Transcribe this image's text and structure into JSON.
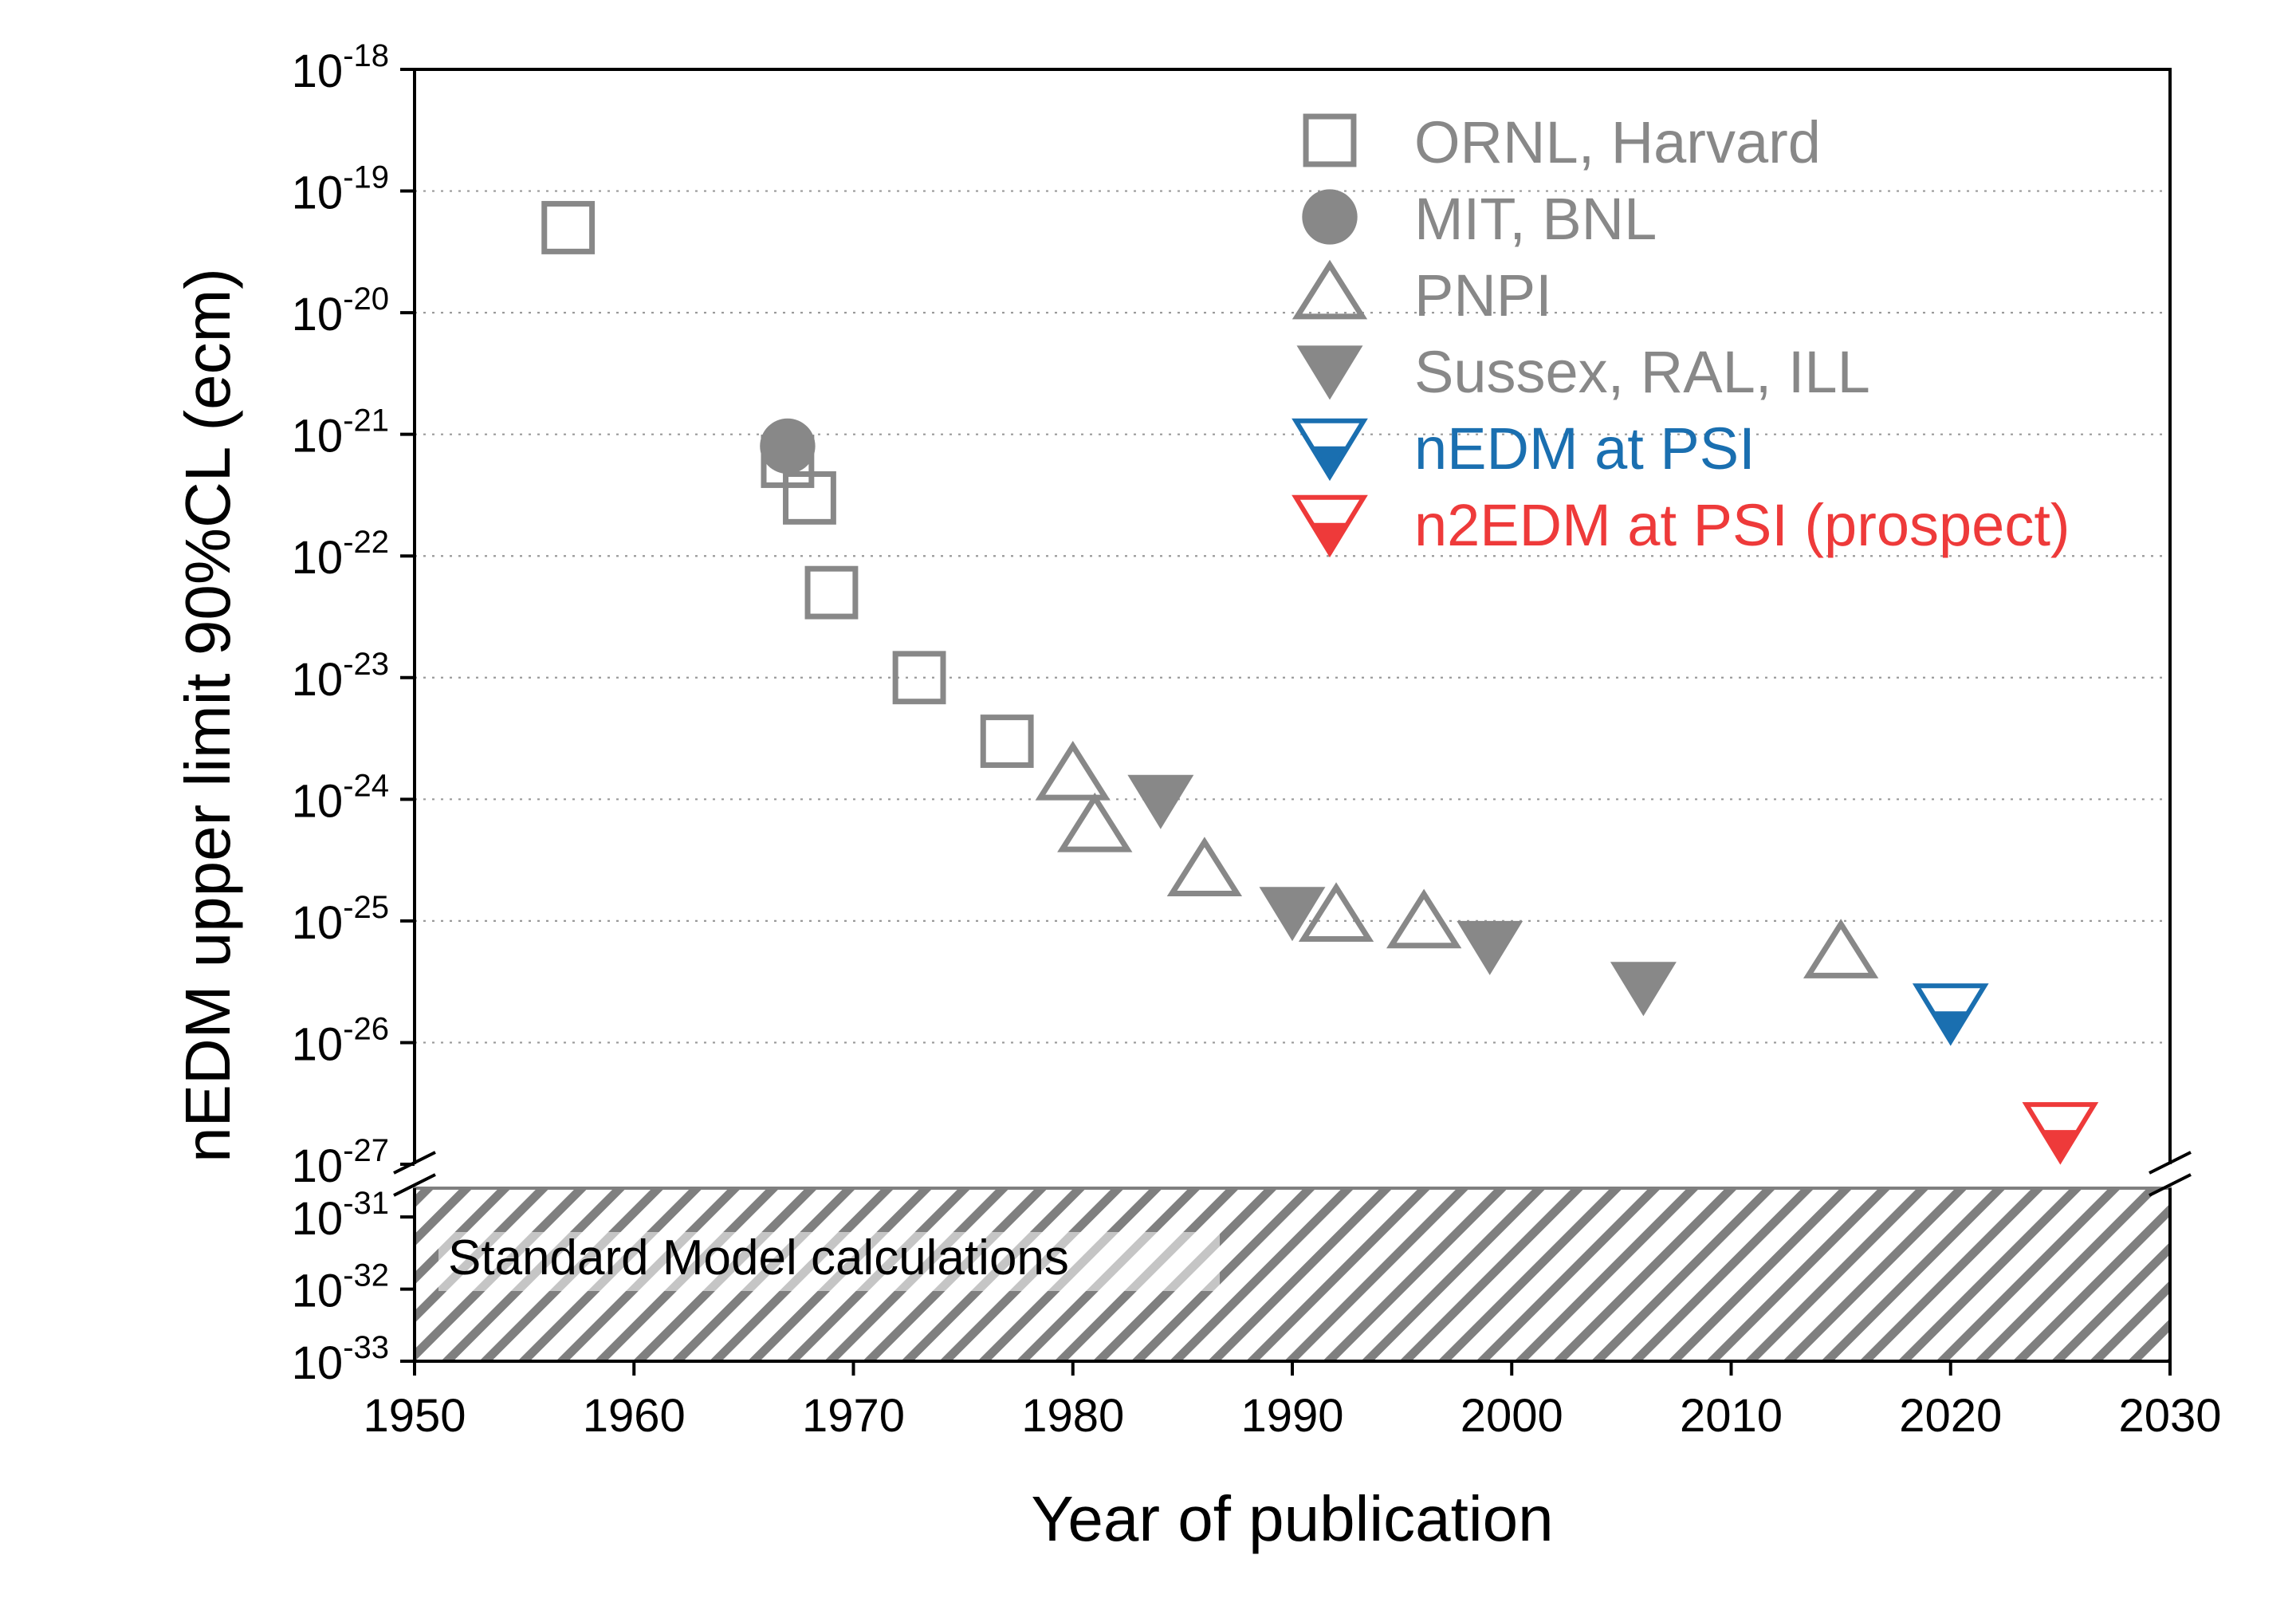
{
  "chart_data": {
    "type": "scatter",
    "xlabel": "Year of publication",
    "ylabel": "nEDM upper limit 90%CL (ecm)",
    "xlim": [
      1950,
      2030
    ],
    "ylim_upper_log10": [
      -27,
      -18
    ],
    "ylim_lower_log10": [
      -33,
      -30.6
    ],
    "y_scale": "log (broken axis)",
    "grid": "horizontal dotted",
    "legend_position": "top-right",
    "x_ticks": [
      "1950",
      "1960",
      "1970",
      "1980",
      "1990",
      "2000",
      "2010",
      "2020",
      "2030"
    ],
    "y_ticks_upper": [
      {
        "base": "10",
        "exp": "-18"
      },
      {
        "base": "10",
        "exp": "-19"
      },
      {
        "base": "10",
        "exp": "-20"
      },
      {
        "base": "10",
        "exp": "-21"
      },
      {
        "base": "10",
        "exp": "-22"
      },
      {
        "base": "10",
        "exp": "-23"
      },
      {
        "base": "10",
        "exp": "-24"
      },
      {
        "base": "10",
        "exp": "-25"
      },
      {
        "base": "10",
        "exp": "-26"
      },
      {
        "base": "10",
        "exp": "-27"
      }
    ],
    "y_ticks_lower": [
      {
        "base": "10",
        "exp": "-31"
      },
      {
        "base": "10",
        "exp": "-32"
      },
      {
        "base": "10",
        "exp": "-33"
      }
    ],
    "band": {
      "label": "Standard Model calculations",
      "from_log10": -33,
      "to_log10": -30.6
    },
    "series": [
      {
        "name": "ORNL, Harvard",
        "marker": "square-open",
        "color": "#888888",
        "points": [
          [
            1957,
            5e-20
          ],
          [
            1967,
            6e-22
          ],
          [
            1968,
            3e-22
          ],
          [
            1969,
            5e-23
          ],
          [
            1973,
            1e-23
          ],
          [
            1977,
            3e-24
          ]
        ]
      },
      {
        "name": "MIT, BNL",
        "marker": "circle-filled",
        "color": "#888888",
        "points": [
          [
            1967,
            8e-22
          ]
        ]
      },
      {
        "name": "PNPI",
        "marker": "triangle-up-open",
        "color": "#888888",
        "points": [
          [
            1980,
            1.6e-24
          ],
          [
            1981,
            6e-25
          ],
          [
            1986,
            2.6e-25
          ],
          [
            1992,
            1.1e-25
          ],
          [
            1996,
            9.7e-26
          ],
          [
            2015,
            5.5e-26
          ]
        ]
      },
      {
        "name": "Sussex, RAL, ILL",
        "marker": "triangle-down-filled",
        "color": "#888888",
        "points": [
          [
            1984,
            1e-24
          ],
          [
            1990,
            1.2e-25
          ],
          [
            1999,
            6.3e-26
          ],
          [
            2006,
            2.9e-26
          ]
        ]
      },
      {
        "name": "nEDM at PSI",
        "marker": "triangle-down-half",
        "color": "#1a6fb0",
        "points": [
          [
            2020,
            1.8e-26
          ]
        ]
      },
      {
        "name": "n2EDM at PSI (prospect)",
        "marker": "triangle-down-half",
        "color": "#ee3a3a",
        "points": [
          [
            2025,
            1.9e-27
          ]
        ]
      }
    ]
  }
}
